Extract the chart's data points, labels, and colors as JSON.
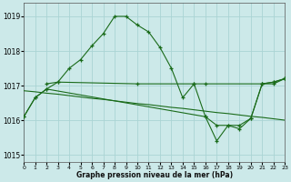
{
  "background_color": "#cce9e9",
  "grid_color": "#aad4d4",
  "line_color": "#1a6b1a",
  "xlabel": "Graphe pression niveau de la mer (hPa)",
  "xlim": [
    0,
    23
  ],
  "ylim": [
    1014.8,
    1019.4
  ],
  "yticks": [
    1015,
    1016,
    1017,
    1018,
    1019
  ],
  "xticks": [
    0,
    1,
    2,
    3,
    4,
    5,
    6,
    7,
    8,
    9,
    10,
    11,
    12,
    13,
    14,
    15,
    16,
    17,
    18,
    19,
    20,
    21,
    22,
    23
  ],
  "curve1_x": [
    0,
    1,
    2,
    3,
    4,
    5,
    6,
    7,
    8,
    9,
    10,
    11,
    12,
    13,
    14,
    15,
    16,
    17,
    18,
    19,
    20,
    21,
    22,
    23
  ],
  "curve1_y": [
    1016.1,
    1016.65,
    1016.9,
    1017.1,
    1017.5,
    1017.75,
    1018.15,
    1018.5,
    1019.0,
    1019.0,
    1018.75,
    1018.55,
    1018.1,
    1017.5,
    1016.65,
    1017.05,
    1016.1,
    1015.85,
    1015.85,
    1015.75,
    1016.05,
    1017.05,
    1017.1,
    1017.2
  ],
  "curve2_x": [
    2,
    3,
    10,
    15,
    16,
    21,
    22,
    23
  ],
  "curve2_y": [
    1017.05,
    1017.1,
    1017.05,
    1017.05,
    1017.05,
    1017.05,
    1017.05,
    1017.2
  ],
  "curve3_x": [
    0,
    1,
    2,
    3,
    4,
    5,
    6,
    7,
    8,
    9,
    10,
    11,
    12,
    13,
    14,
    15,
    16,
    17,
    18,
    19,
    20,
    21,
    22,
    23
  ],
  "curve3_y": [
    1016.85,
    1016.82,
    1016.78,
    1016.75,
    1016.71,
    1016.67,
    1016.63,
    1016.6,
    1016.56,
    1016.52,
    1016.48,
    1016.45,
    1016.41,
    1016.37,
    1016.34,
    1016.3,
    1016.26,
    1016.22,
    1016.19,
    1016.15,
    1016.11,
    1016.08,
    1016.04,
    1016.0
  ],
  "curve4_x": [
    0,
    1,
    2,
    16,
    17,
    18,
    19,
    20,
    21,
    22,
    23
  ],
  "curve4_y": [
    1016.1,
    1016.65,
    1016.9,
    1016.1,
    1015.4,
    1015.85,
    1015.85,
    1016.05,
    1017.05,
    1017.1,
    1017.2
  ]
}
